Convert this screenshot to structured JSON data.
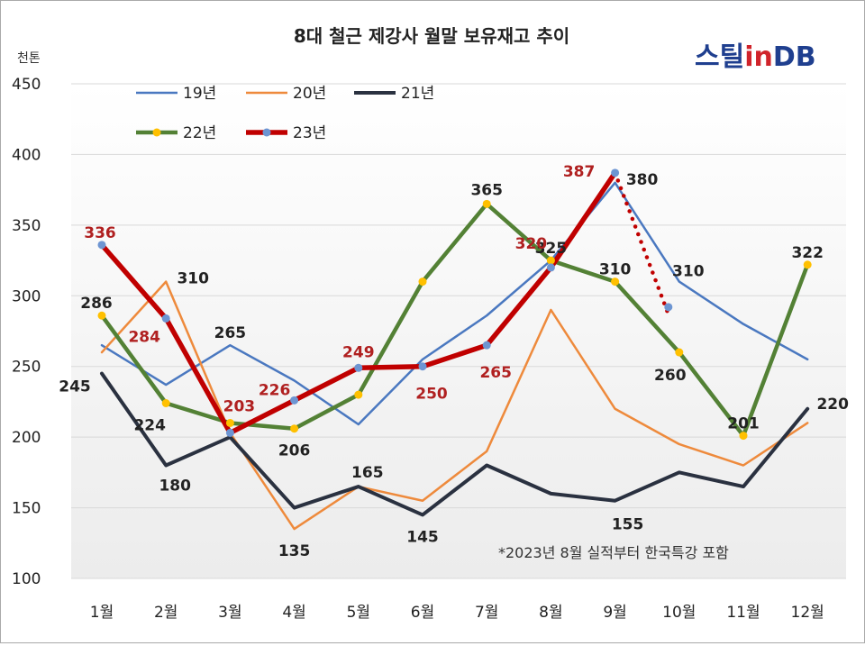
{
  "chart_data": {
    "type": "line",
    "title": "8대 철근 제강사 월말 보유재고 추이",
    "unit_label": "천톤",
    "brand": {
      "part1": "스틸",
      "part2": "in",
      "part3": "DB"
    },
    "footnote": "*2023년 8월 실적부터 한국특강 포함",
    "categories": [
      "1월",
      "2월",
      "3월",
      "4월",
      "5월",
      "6월",
      "7월",
      "8월",
      "9월",
      "10월",
      "11월",
      "12월"
    ],
    "ylim": [
      100,
      450
    ],
    "yticks": [
      100,
      150,
      200,
      250,
      300,
      350,
      400,
      450
    ],
    "legend_position": "top-left",
    "series": [
      {
        "name": "19년",
        "color": "#4a78c0",
        "width": 2.5,
        "marker": "none",
        "label_color": "#222222",
        "values": [
          265,
          237,
          265,
          240,
          209,
          255,
          286,
          325,
          380,
          310,
          280,
          255
        ],
        "labels": [
          null,
          null,
          "265",
          null,
          null,
          null,
          null,
          "325",
          "380",
          "310",
          null,
          null
        ]
      },
      {
        "name": "20년",
        "color": "#ee8a3c",
        "width": 2.5,
        "marker": "none",
        "label_color": "#222222",
        "values": [
          260,
          310,
          203,
          135,
          165,
          155,
          190,
          290,
          220,
          195,
          180,
          210
        ],
        "labels": [
          null,
          "310",
          null,
          "135",
          "165",
          null,
          null,
          null,
          null,
          null,
          null,
          null
        ]
      },
      {
        "name": "21년",
        "color": "#2a3140",
        "width": 4,
        "marker": "none",
        "label_color": "#222222",
        "values": [
          245,
          180,
          200,
          150,
          165,
          145,
          180,
          160,
          155,
          175,
          165,
          220
        ],
        "labels": [
          "245",
          "180",
          null,
          null,
          null,
          "145",
          null,
          null,
          "155",
          null,
          null,
          "220"
        ]
      },
      {
        "name": "22년",
        "color": "#538135",
        "width": 4.5,
        "marker": "gold",
        "label_color": "#222222",
        "values": [
          286,
          224,
          210,
          206,
          230,
          310,
          365,
          325,
          310,
          260,
          201,
          322
        ],
        "labels": [
          "286",
          "224",
          null,
          "206",
          null,
          null,
          "365",
          null,
          "310",
          "260",
          "201",
          "322"
        ]
      },
      {
        "name": "23년",
        "color": "#c00000",
        "width": 5.5,
        "marker": "blue",
        "label_color": "#b02020",
        "values": [
          336,
          284,
          203,
          226,
          249,
          250,
          265,
          320,
          387,
          null,
          null,
          null
        ],
        "labels": [
          "336",
          "284",
          "203",
          "226",
          "249",
          "250",
          "265",
          "320",
          "387",
          null,
          null,
          null
        ]
      }
    ],
    "projection": {
      "series": "23년",
      "from_index": 8,
      "to_value": 292,
      "style": "dotted"
    }
  }
}
